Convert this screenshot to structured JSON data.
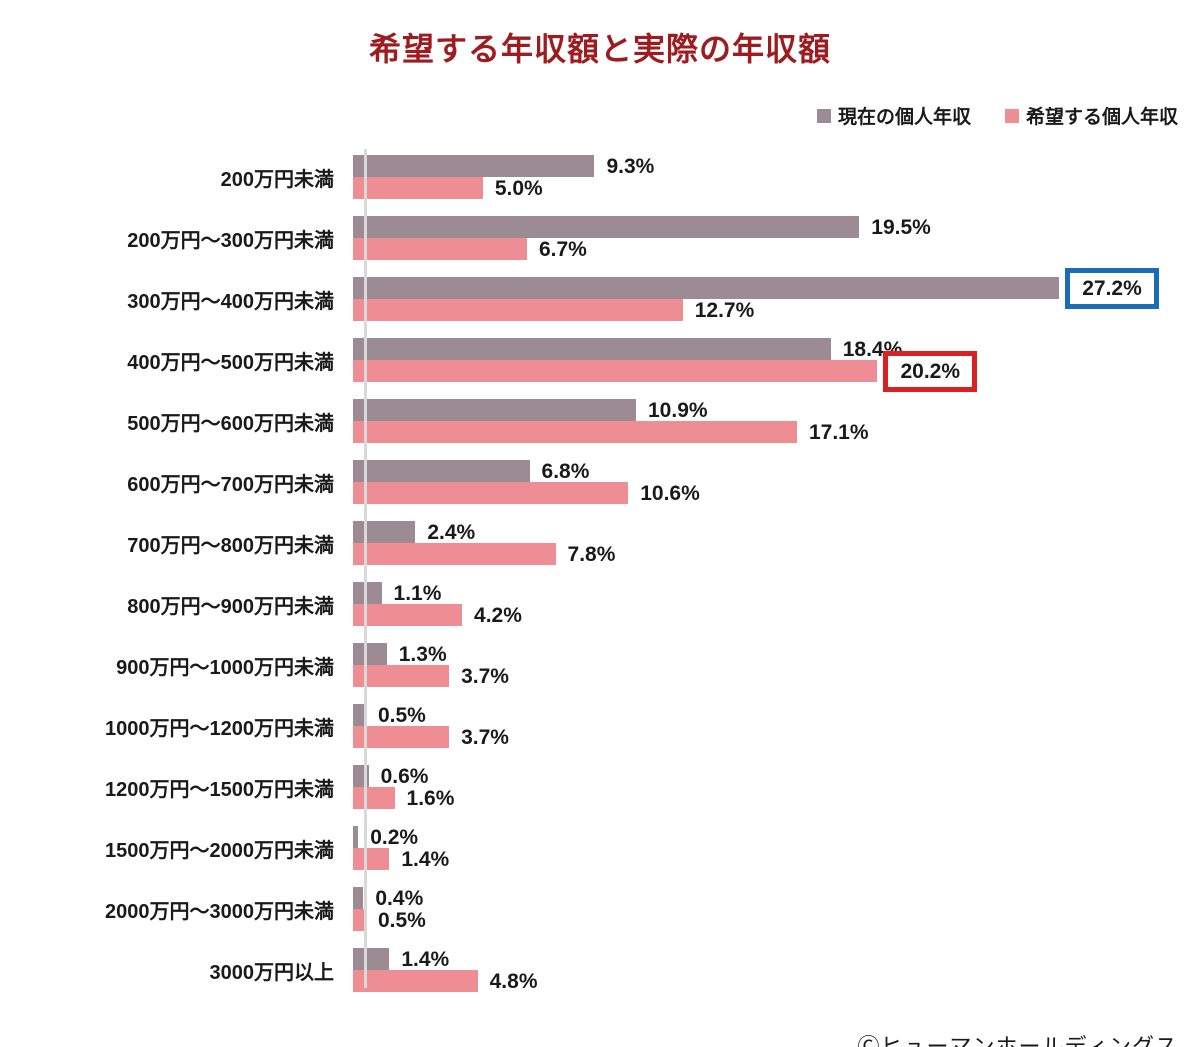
{
  "title": "希望する年収額と実際の年収額",
  "legend": [
    {
      "label": "現在の個人年収",
      "color": "#9c8b92"
    },
    {
      "label": "希望する個人年収",
      "color": "#ef8d94"
    }
  ],
  "copyright": "Ⓒヒューマンホールディングス",
  "colors": {
    "title": "#9e1c1f",
    "axis_line": "#d9d9d9",
    "value_label": "#1a1a1a",
    "highlight_blue": "#1b6cb4",
    "highlight_red": "#da2020"
  },
  "chart_data": {
    "type": "bar",
    "orientation": "horizontal",
    "title": "希望する年収額と実際の年収額",
    "value_suffix": "%",
    "xmax": 28,
    "legend_position": "top-right",
    "grid": false,
    "categories": [
      "200万円未満",
      "200万円〜300万円未満",
      "300万円〜400万円未満",
      "400万円〜500万円未満",
      "500万円〜600万円未満",
      "600万円〜700万円未満",
      "700万円〜800万円未満",
      "800万円〜900万円未満",
      "900万円〜1000万円未満",
      "1000万円〜1200万円未満",
      "1200万円〜1500万円未満",
      "1500万円〜2000万円未満",
      "2000万円〜3000万円未満",
      "3000万円以上"
    ],
    "series": [
      {
        "name": "現在の個人年収",
        "color": "#9c8b92",
        "values": [
          9.3,
          19.5,
          27.2,
          18.4,
          10.9,
          6.8,
          2.4,
          1.1,
          1.3,
          0.5,
          0.6,
          0.2,
          0.4,
          1.4
        ]
      },
      {
        "name": "希望する個人年収",
        "color": "#ef8d94",
        "values": [
          5.0,
          6.7,
          12.7,
          20.2,
          17.1,
          10.6,
          7.8,
          4.2,
          3.7,
          3.7,
          1.6,
          1.4,
          0.5,
          4.8
        ]
      }
    ],
    "annotations": [
      {
        "series": 0,
        "category_index": 2,
        "style": "box",
        "color": "#1b6cb4",
        "label": "27.2%"
      },
      {
        "series": 1,
        "category_index": 3,
        "style": "box",
        "color": "#da2020",
        "label": "20.2%"
      }
    ]
  }
}
